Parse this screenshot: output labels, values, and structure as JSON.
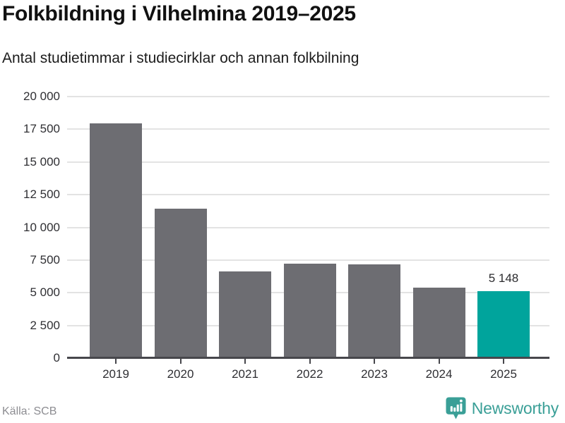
{
  "header": {
    "title": "Folkbildning i Vilhelmina 2019–2025",
    "subtitle": "Antal studietimmar i studiecirklar och annan folkbilning"
  },
  "chart_data": {
    "type": "bar",
    "categories": [
      "2019",
      "2020",
      "2021",
      "2022",
      "2023",
      "2024",
      "2025"
    ],
    "values": [
      17950,
      11450,
      6630,
      7220,
      7170,
      5390,
      5148
    ],
    "highlight_index": 6,
    "highlight_value_label": "5 148",
    "title": "Folkbildning i Vilhelmina 2019–2025",
    "subtitle": "Antal studietimmar i studiecirklar och annan folkbilning",
    "xlabel": "",
    "ylabel": "",
    "ylim": [
      0,
      20000
    ],
    "ytick_step": 2500,
    "ytick_labels": [
      "0",
      "2 500",
      "5 000",
      "7 500",
      "10 000",
      "12 500",
      "15 000",
      "17 500",
      "20 000"
    ],
    "grid": true,
    "legend": "none",
    "bar_color": "#6d6d72",
    "highlight_color": "#00a49c"
  },
  "footer": {
    "source": "Källa: SCB",
    "brand": "Newsworthy",
    "brand_color": "#3a9f97",
    "logo_icon": "newsworthy-bar-chart-bubble-icon"
  }
}
